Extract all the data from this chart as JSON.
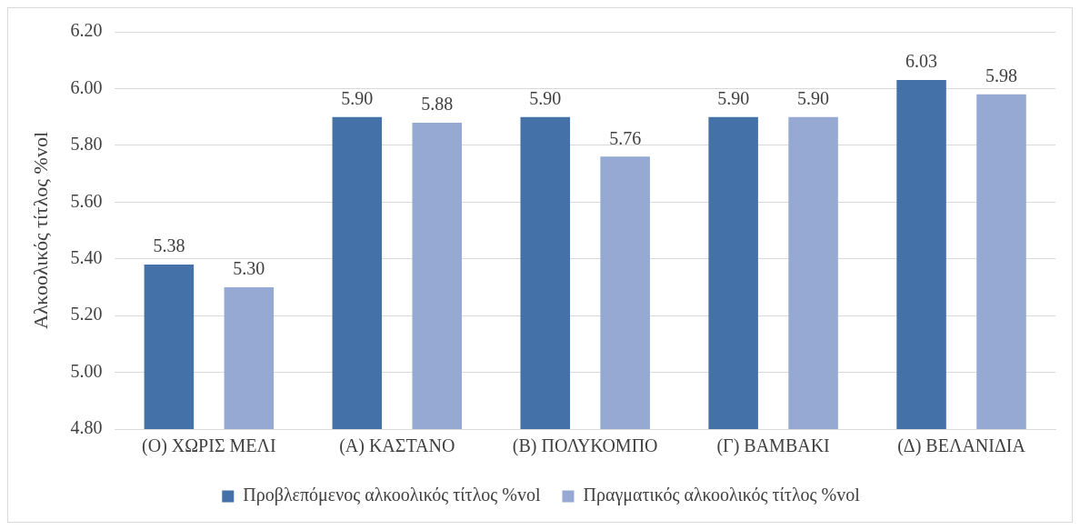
{
  "chart_data": {
    "type": "bar",
    "ylabel": "Αλκοολικός τίτλος %vol",
    "categories": [
      "(Ο) ΧΩΡΙΣ ΜΕΛΙ",
      "(Α) ΚΑΣΤΑΝΟ",
      "(Β) ΠΟΛΥΚΟΜΠΟ",
      "(Γ) ΒΑΜΒΑΚΙ",
      "(Δ) ΒΕΛΑΝΙΔΙΑ"
    ],
    "series": [
      {
        "name": "Προβλεπόμενος αλκοολικός τίτλος %vol",
        "color": "#4472a8",
        "values": [
          5.38,
          5.9,
          5.9,
          5.9,
          6.03
        ],
        "value_labels": [
          "5.38",
          "5.90",
          "5.90",
          "5.90",
          "6.03"
        ]
      },
      {
        "name": "Πραγματικός αλκοολικός τίτλος %vol",
        "color": "#95a9d2",
        "values": [
          5.3,
          5.88,
          5.76,
          5.9,
          5.98
        ],
        "value_labels": [
          "5.30",
          "5.88",
          "5.76",
          "5.90",
          "5.98"
        ]
      }
    ],
    "ylim": [
      4.8,
      6.2
    ],
    "yticks": [
      {
        "value": 4.8,
        "label": "4.80"
      },
      {
        "value": 5.0,
        "label": "5.00"
      },
      {
        "value": 5.2,
        "label": "5.20"
      },
      {
        "value": 5.4,
        "label": "5.40"
      },
      {
        "value": 5.6,
        "label": "5.60"
      },
      {
        "value": 5.8,
        "label": "5.80"
      },
      {
        "value": 6.0,
        "label": "6.00"
      },
      {
        "value": 6.2,
        "label": "6.20"
      }
    ],
    "grid": "y",
    "legend": "bottom"
  }
}
